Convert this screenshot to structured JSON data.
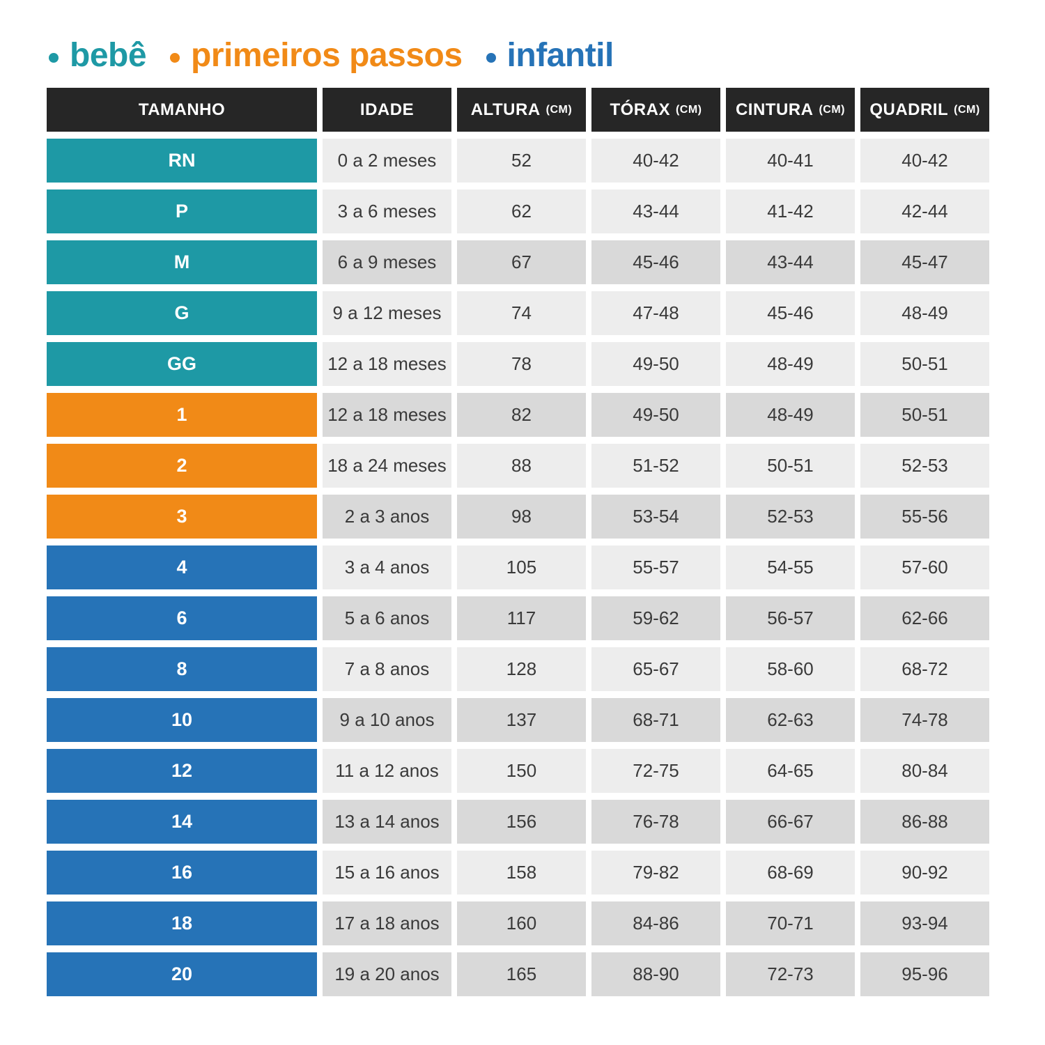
{
  "page": {
    "background": "#ffffff"
  },
  "legend": {
    "items": [
      {
        "key": "bebe",
        "label": "bebê",
        "color": "#1E99A5"
      },
      {
        "key": "primeiros-passos",
        "label": "primeiros passos",
        "color": "#F18A17"
      },
      {
        "key": "infantil",
        "label": "infantil",
        "color": "#2673B7"
      }
    ]
  },
  "table": {
    "header_bg": "#262626",
    "row_colors": {
      "light": "#EDEDED",
      "dark": "#D9D9D9"
    },
    "group_colors": {
      "bebe": "#1E99A5",
      "primeiros-passos": "#F18A17",
      "infantil": "#2673B7"
    },
    "columns": [
      {
        "key": "tamanho",
        "label": "TAMANHO",
        "unit": ""
      },
      {
        "key": "idade",
        "label": "IDADE",
        "unit": ""
      },
      {
        "key": "altura",
        "label": "ALTURA",
        "unit": "(CM)"
      },
      {
        "key": "torax",
        "label": "TÓRAX",
        "unit": "(CM)"
      },
      {
        "key": "cintura",
        "label": "CINTURA",
        "unit": "(CM)"
      },
      {
        "key": "quadril",
        "label": "QUADRIL",
        "unit": "(CM)"
      }
    ],
    "rows": [
      {
        "size": "RN",
        "group": "bebe",
        "shade": "light",
        "idade": "0 a 2 meses",
        "altura": "52",
        "torax": "40-42",
        "cintura": "40-41",
        "quadril": "40-42"
      },
      {
        "size": "P",
        "group": "bebe",
        "shade": "light",
        "idade": "3 a 6 meses",
        "altura": "62",
        "torax": "43-44",
        "cintura": "41-42",
        "quadril": "42-44"
      },
      {
        "size": "M",
        "group": "bebe",
        "shade": "dark",
        "idade": "6 a 9 meses",
        "altura": "67",
        "torax": "45-46",
        "cintura": "43-44",
        "quadril": "45-47"
      },
      {
        "size": "G",
        "group": "bebe",
        "shade": "light",
        "idade": "9 a 12 meses",
        "altura": "74",
        "torax": "47-48",
        "cintura": "45-46",
        "quadril": "48-49"
      },
      {
        "size": "GG",
        "group": "bebe",
        "shade": "light",
        "idade": "12 a 18 meses",
        "altura": "78",
        "torax": "49-50",
        "cintura": "48-49",
        "quadril": "50-51"
      },
      {
        "size": "1",
        "group": "primeiros-passos",
        "shade": "dark",
        "idade": "12 a 18 meses",
        "altura": "82",
        "torax": "49-50",
        "cintura": "48-49",
        "quadril": "50-51"
      },
      {
        "size": "2",
        "group": "primeiros-passos",
        "shade": "light",
        "idade": "18 a 24 meses",
        "altura": "88",
        "torax": "51-52",
        "cintura": "50-51",
        "quadril": "52-53"
      },
      {
        "size": "3",
        "group": "primeiros-passos",
        "shade": "dark",
        "idade": "2 a 3 anos",
        "altura": "98",
        "torax": "53-54",
        "cintura": "52-53",
        "quadril": "55-56"
      },
      {
        "size": "4",
        "group": "infantil",
        "shade": "light",
        "idade": "3 a 4 anos",
        "altura": "105",
        "torax": "55-57",
        "cintura": "54-55",
        "quadril": "57-60"
      },
      {
        "size": "6",
        "group": "infantil",
        "shade": "dark",
        "idade": "5 a 6 anos",
        "altura": "117",
        "torax": "59-62",
        "cintura": "56-57",
        "quadril": "62-66"
      },
      {
        "size": "8",
        "group": "infantil",
        "shade": "light",
        "idade": "7 a 8 anos",
        "altura": "128",
        "torax": "65-67",
        "cintura": "58-60",
        "quadril": "68-72"
      },
      {
        "size": "10",
        "group": "infantil",
        "shade": "dark",
        "idade": "9 a 10 anos",
        "altura": "137",
        "torax": "68-71",
        "cintura": "62-63",
        "quadril": "74-78"
      },
      {
        "size": "12",
        "group": "infantil",
        "shade": "light",
        "idade": "11 a 12 anos",
        "altura": "150",
        "torax": "72-75",
        "cintura": "64-65",
        "quadril": "80-84"
      },
      {
        "size": "14",
        "group": "infantil",
        "shade": "dark",
        "idade": "13 a 14 anos",
        "altura": "156",
        "torax": "76-78",
        "cintura": "66-67",
        "quadril": "86-88"
      },
      {
        "size": "16",
        "group": "infantil",
        "shade": "light",
        "idade": "15 a 16 anos",
        "altura": "158",
        "torax": "79-82",
        "cintura": "68-69",
        "quadril": "90-92"
      },
      {
        "size": "18",
        "group": "infantil",
        "shade": "dark",
        "idade": "17 a 18 anos",
        "altura": "160",
        "torax": "84-86",
        "cintura": "70-71",
        "quadril": "93-94"
      },
      {
        "size": "20",
        "group": "infantil",
        "shade": "dark",
        "idade": "19 a 20 anos",
        "altura": "165",
        "torax": "88-90",
        "cintura": "72-73",
        "quadril": "95-96"
      }
    ]
  },
  "chart_data": {
    "type": "table",
    "title": "",
    "legend": [
      "bebê",
      "primeiros passos",
      "infantil"
    ],
    "legend_position": "top-left",
    "columns": [
      "TAMANHO",
      "IDADE",
      "ALTURA (CM)",
      "TÓRAX (CM)",
      "CINTURA (CM)",
      "QUADRIL (CM)"
    ],
    "row_groups": [
      "bebê",
      "bebê",
      "bebê",
      "bebê",
      "bebê",
      "primeiros passos",
      "primeiros passos",
      "primeiros passos",
      "infantil",
      "infantil",
      "infantil",
      "infantil",
      "infantil",
      "infantil",
      "infantil",
      "infantil",
      "infantil"
    ],
    "rows": [
      [
        "RN",
        "0 a 2 meses",
        "52",
        "40-42",
        "40-41",
        "40-42"
      ],
      [
        "P",
        "3 a 6 meses",
        "62",
        "43-44",
        "41-42",
        "42-44"
      ],
      [
        "M",
        "6 a 9 meses",
        "67",
        "45-46",
        "43-44",
        "45-47"
      ],
      [
        "G",
        "9 a 12 meses",
        "74",
        "47-48",
        "45-46",
        "48-49"
      ],
      [
        "GG",
        "12 a 18 meses",
        "78",
        "49-50",
        "48-49",
        "50-51"
      ],
      [
        "1",
        "12 a 18 meses",
        "82",
        "49-50",
        "48-49",
        "50-51"
      ],
      [
        "2",
        "18 a 24 meses",
        "88",
        "51-52",
        "50-51",
        "52-53"
      ],
      [
        "3",
        "2 a 3 anos",
        "98",
        "53-54",
        "52-53",
        "55-56"
      ],
      [
        "4",
        "3 a 4 anos",
        "105",
        "55-57",
        "54-55",
        "57-60"
      ],
      [
        "6",
        "5 a 6 anos",
        "117",
        "59-62",
        "56-57",
        "62-66"
      ],
      [
        "8",
        "7 a 8 anos",
        "128",
        "65-67",
        "58-60",
        "68-72"
      ],
      [
        "10",
        "9 a 10 anos",
        "137",
        "68-71",
        "62-63",
        "74-78"
      ],
      [
        "12",
        "11 a 12 anos",
        "150",
        "72-75",
        "64-65",
        "80-84"
      ],
      [
        "14",
        "13 a 14 anos",
        "156",
        "76-78",
        "66-67",
        "86-88"
      ],
      [
        "16",
        "15 a 16 anos",
        "158",
        "79-82",
        "68-69",
        "90-92"
      ],
      [
        "18",
        "17 a 18 anos",
        "160",
        "84-86",
        "70-71",
        "93-94"
      ],
      [
        "20",
        "19 a 20 anos",
        "165",
        "88-90",
        "72-73",
        "95-96"
      ]
    ]
  }
}
